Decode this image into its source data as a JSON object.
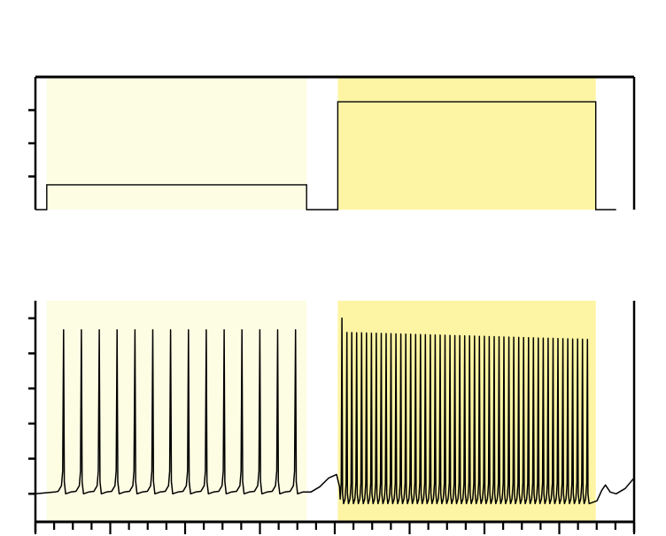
{
  "chart_data": [
    {
      "type": "line",
      "title": "",
      "xlabel": "",
      "ylabel": "",
      "xlim": [
        0,
        100
      ],
      "ylim": [
        0,
        4
      ],
      "grid": false,
      "shaded_regions": [
        {
          "x_range": [
            1.9,
            45.3
          ],
          "color": "#fdfde4"
        },
        {
          "x_range": [
            50.5,
            93.6
          ],
          "color": "#fdf5a4"
        }
      ],
      "series": [
        {
          "x": [
            0,
            1.9,
            1.9,
            45.3,
            45.3,
            50.5,
            50.5,
            93.6,
            93.6,
            97
          ],
          "y": [
            0,
            0,
            0.75,
            0.75,
            0,
            0,
            3.25,
            3.25,
            0,
            0
          ]
        }
      ]
    },
    {
      "type": "line",
      "title": "",
      "xlabel": "",
      "ylabel": "",
      "xlim": [
        0,
        100
      ],
      "ylim": [
        -0.8,
        5.5
      ],
      "grid": false,
      "shaded_regions": [
        {
          "x_range": [
            1.9,
            45.3
          ],
          "color": "#fdfde4"
        },
        {
          "x_range": [
            50.5,
            93.6
          ],
          "color": "#fdf5a4"
        }
      ],
      "spike_trains": [
        {
          "start": 4.7,
          "interval": 2.98,
          "count": 14,
          "peak": 4.67,
          "baseline": 0.05
        },
        {
          "start": 51.2,
          "interval": 0.82,
          "count": 51,
          "peak_first": 5.0,
          "peak_rest": 4.6,
          "peak_end": 4.4,
          "baseline": -0.2
        }
      ],
      "y_ticks": [
        0,
        1,
        2,
        3,
        4,
        5
      ]
    }
  ]
}
